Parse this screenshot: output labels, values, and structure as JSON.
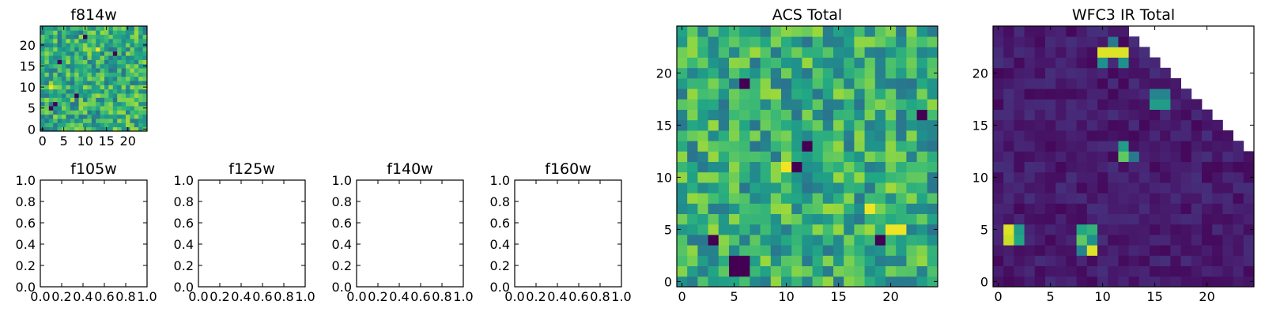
{
  "colormap": "viridis",
  "chart_data": [
    {
      "type": "heatmap",
      "id": "f814w",
      "title": "f814w",
      "grid_size": [
        25,
        25
      ],
      "xlim": [
        -0.5,
        24.5
      ],
      "ylim": [
        -0.5,
        24.5
      ],
      "xticks": [
        0,
        5,
        10,
        15,
        20
      ],
      "xtick_labels": [
        "0",
        "5",
        "10",
        "15",
        "20"
      ],
      "yticks": [
        0,
        5,
        10,
        15,
        20
      ],
      "ytick_labels": [
        "0",
        "5",
        "10",
        "15",
        "20"
      ],
      "values_pattern": "noise",
      "seed": 11,
      "low_cells": [
        [
          2,
          5
        ],
        [
          3,
          6
        ],
        [
          8,
          8
        ],
        [
          17,
          18
        ],
        [
          10,
          22
        ],
        [
          4,
          16
        ]
      ],
      "high_cells": [
        [
          2,
          10
        ],
        [
          13,
          19
        ]
      ],
      "hot_spots": [],
      "masked": "none"
    },
    {
      "type": "heatmap",
      "id": "acs-total",
      "title": "ACS Total",
      "grid_size": [
        25,
        25
      ],
      "xlim": [
        -0.5,
        24.5
      ],
      "ylim": [
        -0.5,
        24.5
      ],
      "xticks": [
        0,
        5,
        10,
        15,
        20
      ],
      "xtick_labels": [
        "0",
        "5",
        "10",
        "15",
        "20"
      ],
      "yticks": [
        0,
        5,
        10,
        15,
        20
      ],
      "ytick_labels": [
        "0",
        "5",
        "10",
        "15",
        "20"
      ],
      "values_pattern": "noise",
      "seed": 29,
      "low_cells": [
        [
          5,
          1
        ],
        [
          6,
          1
        ],
        [
          5,
          2
        ],
        [
          6,
          2
        ],
        [
          3,
          4
        ],
        [
          19,
          4
        ],
        [
          6,
          19
        ],
        [
          11,
          11
        ],
        [
          23,
          16
        ],
        [
          12,
          13
        ]
      ],
      "high_cells": [
        [
          10,
          11
        ],
        [
          18,
          7
        ],
        [
          20,
          5
        ],
        [
          21,
          5
        ]
      ],
      "hot_spots": [],
      "masked": "none"
    },
    {
      "type": "heatmap",
      "id": "wfc3-ir-total",
      "title": "WFC3 IR Total",
      "grid_size": [
        25,
        25
      ],
      "xlim": [
        -0.5,
        24.5
      ],
      "ylim": [
        -0.5,
        24.5
      ],
      "xticks": [
        0,
        5,
        10,
        15,
        20
      ],
      "xtick_labels": [
        "0",
        "5",
        "10",
        "15",
        "20"
      ],
      "yticks": [
        0,
        5,
        10,
        15,
        20
      ],
      "ytick_labels": [
        "0",
        "5",
        "10",
        "15",
        "20"
      ],
      "values_pattern": "low",
      "seed": 47,
      "low_cells": [],
      "high_cells": [],
      "hot_spots": [
        {
          "x": 1,
          "y": 5,
          "v": 0.95
        },
        {
          "x": 1,
          "y": 4,
          "v": 0.92
        },
        {
          "x": 2,
          "y": 5,
          "v": 0.55
        },
        {
          "x": 2,
          "y": 4,
          "v": 0.6
        },
        {
          "x": 8,
          "y": 5,
          "v": 0.6
        },
        {
          "x": 9,
          "y": 5,
          "v": 0.65
        },
        {
          "x": 8,
          "y": 4,
          "v": 0.75
        },
        {
          "x": 9,
          "y": 4,
          "v": 0.5
        },
        {
          "x": 9,
          "y": 3,
          "v": 0.95
        },
        {
          "x": 8,
          "y": 3,
          "v": 0.45
        },
        {
          "x": 12,
          "y": 12,
          "v": 0.75
        },
        {
          "x": 12,
          "y": 13,
          "v": 0.55
        },
        {
          "x": 13,
          "y": 12,
          "v": 0.4
        },
        {
          "x": 15,
          "y": 17,
          "v": 0.55
        },
        {
          "x": 16,
          "y": 17,
          "v": 0.55
        },
        {
          "x": 15,
          "y": 18,
          "v": 0.45
        },
        {
          "x": 16,
          "y": 18,
          "v": 0.45
        },
        {
          "x": 10,
          "y": 22,
          "v": 0.95
        },
        {
          "x": 11,
          "y": 22,
          "v": 0.95
        },
        {
          "x": 12,
          "y": 22,
          "v": 0.95
        },
        {
          "x": 10,
          "y": 21,
          "v": 0.5
        },
        {
          "x": 12,
          "y": 21,
          "v": 0.5
        },
        {
          "x": 11,
          "y": 23,
          "v": 0.4
        }
      ],
      "masked": "upper-right-triangle"
    },
    {
      "type": "empty",
      "id": "f105w",
      "title": "f105w",
      "xlim": [
        0,
        1
      ],
      "ylim": [
        0,
        1
      ],
      "xtick_labels": [
        "0.0",
        "0.2",
        "0.4",
        "0.6",
        "0.8",
        "1.0"
      ],
      "ytick_labels": [
        "0.0",
        "0.2",
        "0.4",
        "0.6",
        "0.8",
        "1.0"
      ]
    },
    {
      "type": "empty",
      "id": "f125w",
      "title": "f125w",
      "xlim": [
        0,
        1
      ],
      "ylim": [
        0,
        1
      ],
      "xtick_labels": [
        "0.0",
        "0.2",
        "0.4",
        "0.6",
        "0.8",
        "1.0"
      ],
      "ytick_labels": [
        "0.0",
        "0.2",
        "0.4",
        "0.6",
        "0.8",
        "1.0"
      ]
    },
    {
      "type": "empty",
      "id": "f140w",
      "title": "f140w",
      "xlim": [
        0,
        1
      ],
      "ylim": [
        0,
        1
      ],
      "xtick_labels": [
        "0.0",
        "0.2",
        "0.4",
        "0.6",
        "0.8",
        "1.0"
      ],
      "ytick_labels": [
        "0.0",
        "0.2",
        "0.4",
        "0.6",
        "0.8",
        "1.0"
      ]
    },
    {
      "type": "empty",
      "id": "f160w",
      "title": "f160w",
      "xlim": [
        0,
        1
      ],
      "ylim": [
        0,
        1
      ],
      "xtick_labels": [
        "0.0",
        "0.2",
        "0.4",
        "0.6",
        "0.8",
        "1.0"
      ],
      "ytick_labels": [
        "0.0",
        "0.2",
        "0.4",
        "0.6",
        "0.8",
        "1.0"
      ]
    }
  ]
}
